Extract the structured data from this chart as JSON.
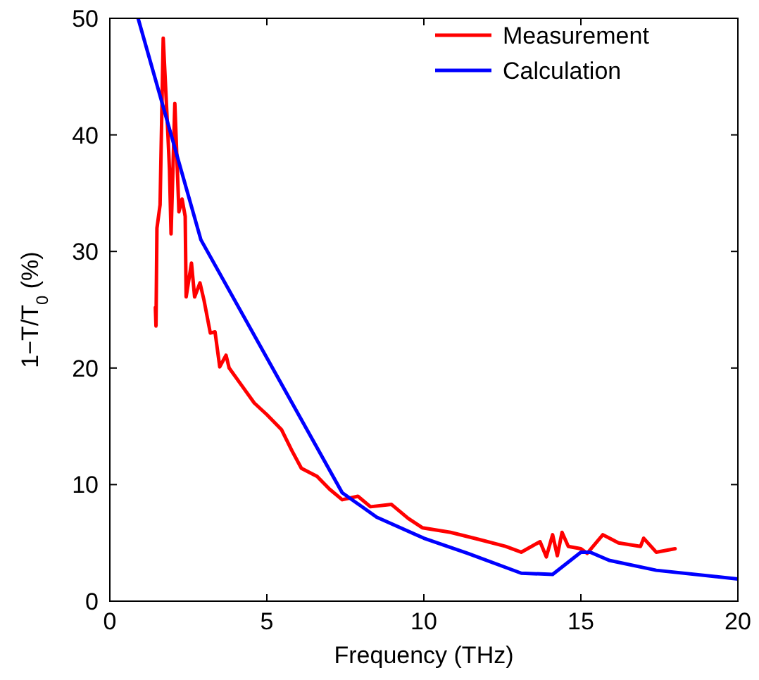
{
  "chart_data": {
    "type": "line",
    "xlabel": "Frequency (THz)",
    "ylabel": "1−T/T$_{0}$ (%)",
    "xlim": [
      0,
      20
    ],
    "ylim": [
      0,
      50
    ],
    "xticks": [
      0,
      5,
      10,
      15,
      20
    ],
    "yticks": [
      0,
      10,
      20,
      30,
      40,
      50
    ],
    "legend": "top right",
    "grid": false,
    "line_style": "solid",
    "marker": "none",
    "series": [
      {
        "name": "Measurement",
        "color": "#ff0000",
        "x": [
          1.45,
          1.47,
          1.5,
          1.6,
          1.7,
          1.85,
          1.9,
          1.95,
          2.07,
          2.2,
          2.3,
          2.4,
          2.43,
          2.6,
          2.7,
          2.87,
          3.0,
          3.2,
          3.35,
          3.5,
          3.7,
          3.8,
          4.2,
          4.6,
          5.0,
          5.47,
          5.8,
          6.1,
          6.6,
          7.0,
          7.4,
          7.9,
          8.3,
          8.97,
          9.5,
          9.95,
          10.85,
          11.75,
          12.6,
          13.1,
          13.7,
          13.9,
          14.1,
          14.25,
          14.4,
          14.6,
          15.0,
          15.2,
          15.7,
          16.2,
          16.9,
          17.0,
          17.4,
          18.0
        ],
        "values": [
          25.2,
          23.6,
          32,
          34,
          48.3,
          40,
          37,
          31.5,
          42.7,
          33.4,
          34.5,
          33,
          26.1,
          29,
          26.1,
          27.3,
          25.8,
          23,
          23.1,
          20.1,
          21.1,
          20,
          18.5,
          17,
          16,
          14.7,
          12.9,
          11.4,
          10.7,
          9.6,
          8.7,
          9,
          8.1,
          8.3,
          7.1,
          6.3,
          5.9,
          5.3,
          4.7,
          4.2,
          5.1,
          3.8,
          5.7,
          3.9,
          5.9,
          4.7,
          4.5,
          4.1,
          5.7,
          5,
          4.7,
          5.4,
          4.2,
          4.5
        ]
      },
      {
        "name": "Calculation",
        "color": "#0000ff",
        "x": [
          0.9,
          2.9,
          7.4,
          8.5,
          10,
          11.4,
          13.1,
          14.1,
          15.0,
          15.3,
          15.9,
          17.4,
          20
        ],
        "values": [
          50,
          31,
          9.3,
          7.2,
          5.4,
          4.1,
          2.4,
          2.3,
          4.2,
          4.2,
          3.5,
          2.65,
          1.9
        ]
      }
    ]
  }
}
